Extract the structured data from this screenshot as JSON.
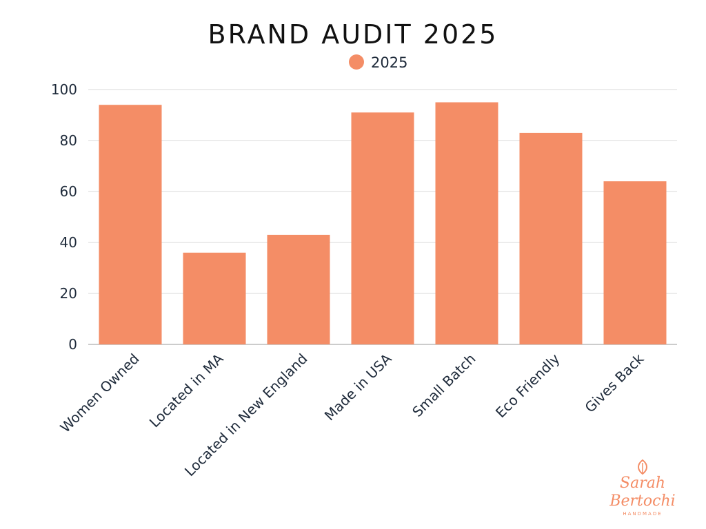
{
  "chart_data": {
    "type": "bar",
    "title": "BRAND AUDIT 2025",
    "legend_position": "top-center",
    "categories": [
      "Women Owned",
      "Located in MA",
      "Located in New England",
      "Made in USA",
      "Small Batch",
      "Eco Friendly",
      "Gives Back"
    ],
    "series": [
      {
        "name": "2025",
        "values": [
          94,
          36,
          43,
          91,
          95,
          83,
          64
        ]
      }
    ],
    "ylim": [
      0,
      100
    ],
    "yticks": [
      0,
      20,
      40,
      60,
      80,
      100
    ],
    "xlabel": "",
    "ylabel": "",
    "grid": true,
    "colors": {
      "bar": "#F48D66",
      "grid": "#d9d9d9",
      "axis_text": "#1e2a3a"
    }
  },
  "logo": {
    "line1": "Sarah",
    "line2": "Bertochi",
    "subtitle": "HANDMADE",
    "icon": "leaf-icon",
    "color": "#F48D66"
  }
}
